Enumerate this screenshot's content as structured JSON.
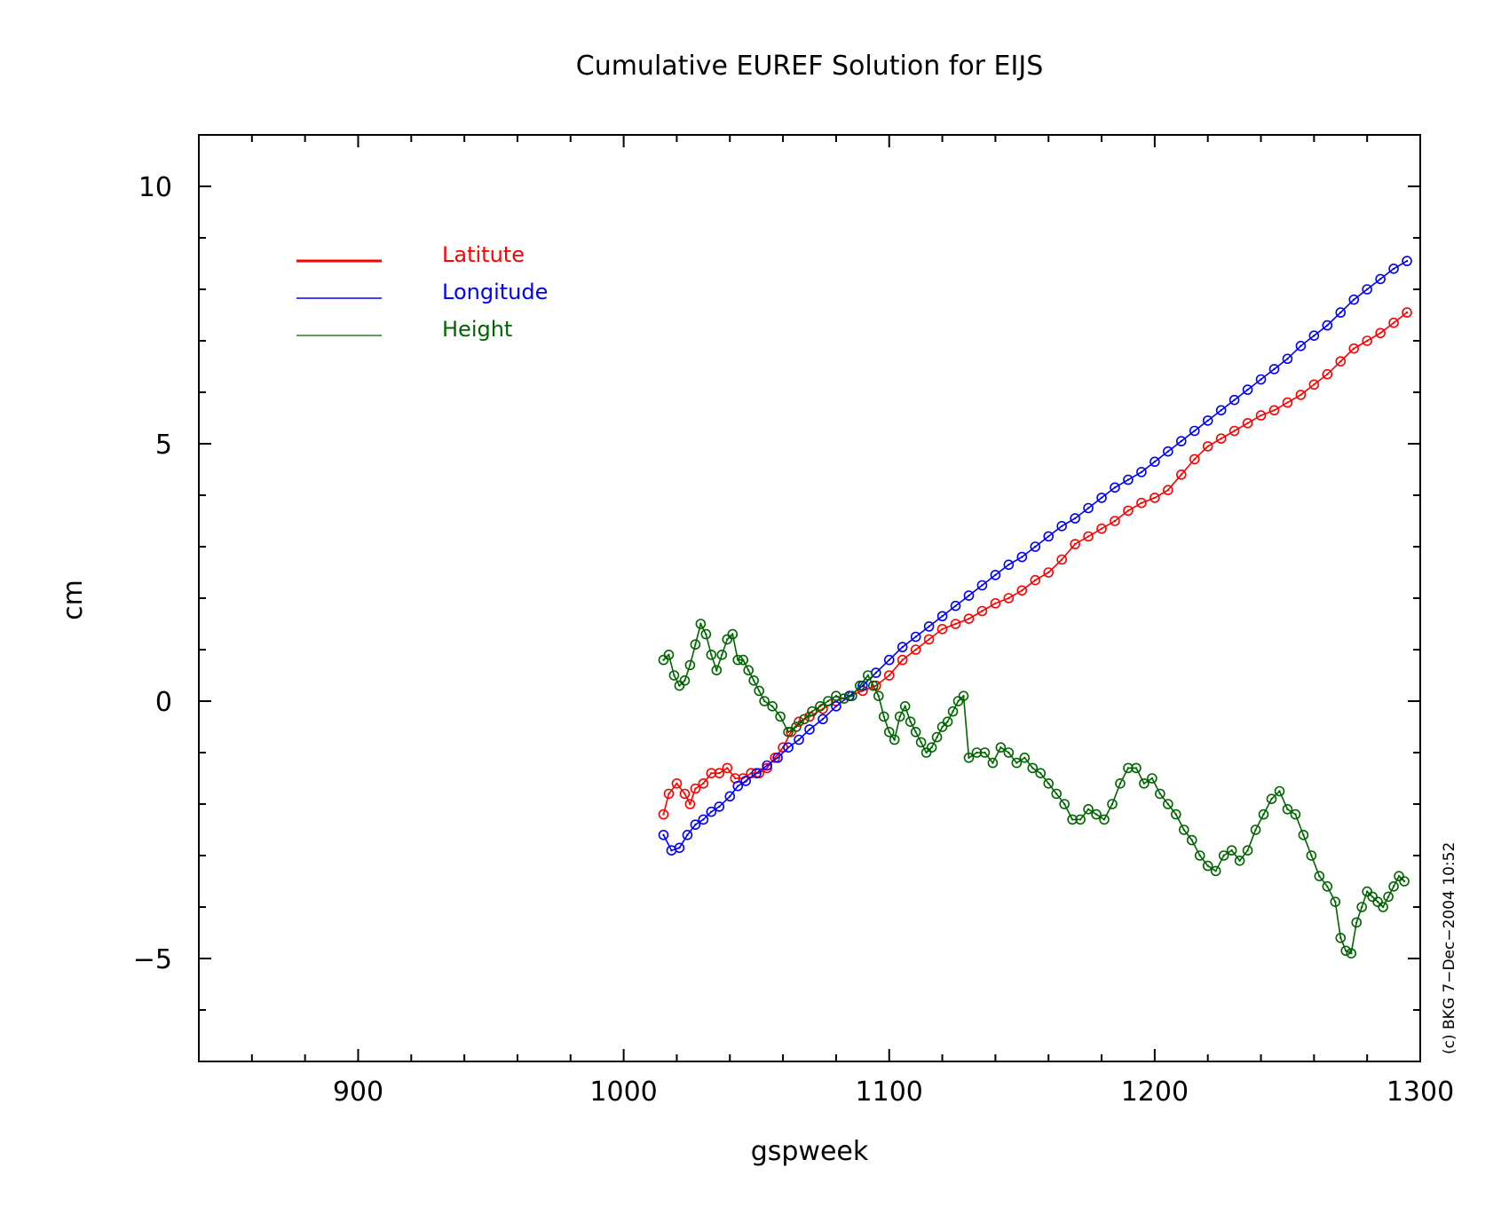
{
  "chart_data": {
    "type": "line",
    "title": "Cumulative EUREF Solution for EIJS",
    "xlabel": "gspweek",
    "ylabel": "cm",
    "xlim": [
      840,
      1300
    ],
    "ylim": [
      -7,
      11
    ],
    "x_ticks": [
      900,
      1000,
      1100,
      1200,
      1300
    ],
    "x_tick_labels": [
      "900",
      "1000",
      "1100",
      "1200",
      "1300"
    ],
    "y_ticks": [
      -5,
      0,
      5,
      10
    ],
    "y_tick_labels": [
      "−5",
      "0",
      "5",
      "10"
    ],
    "x_minor_step": 20,
    "y_minor_step": 1,
    "grid": false,
    "legend_position": "top-left",
    "credit": "(c) BKG 7−Dec−2004 10:52",
    "series": [
      {
        "name": "Latitute",
        "color": "#ff0000",
        "points": [
          [
            1015,
            -2.2
          ],
          [
            1017,
            -1.8
          ],
          [
            1020,
            -1.6
          ],
          [
            1023,
            -1.8
          ],
          [
            1025,
            -2.0
          ],
          [
            1027,
            -1.7
          ],
          [
            1030,
            -1.6
          ],
          [
            1033,
            -1.4
          ],
          [
            1036,
            -1.4
          ],
          [
            1039,
            -1.3
          ],
          [
            1042,
            -1.5
          ],
          [
            1045,
            -1.5
          ],
          [
            1048,
            -1.4
          ],
          [
            1051,
            -1.4
          ],
          [
            1054,
            -1.3
          ],
          [
            1057,
            -1.1
          ],
          [
            1060,
            -0.9
          ],
          [
            1063,
            -0.6
          ],
          [
            1066,
            -0.4
          ],
          [
            1070,
            -0.3
          ],
          [
            1075,
            -0.15
          ],
          [
            1080,
            0.0
          ],
          [
            1085,
            0.1
          ],
          [
            1090,
            0.2
          ],
          [
            1095,
            0.3
          ],
          [
            1100,
            0.5
          ],
          [
            1105,
            0.8
          ],
          [
            1110,
            1.0
          ],
          [
            1115,
            1.2
          ],
          [
            1120,
            1.4
          ],
          [
            1125,
            1.5
          ],
          [
            1130,
            1.6
          ],
          [
            1135,
            1.75
          ],
          [
            1140,
            1.9
          ],
          [
            1145,
            2.0
          ],
          [
            1150,
            2.15
          ],
          [
            1155,
            2.35
          ],
          [
            1160,
            2.5
          ],
          [
            1165,
            2.75
          ],
          [
            1170,
            3.05
          ],
          [
            1175,
            3.2
          ],
          [
            1180,
            3.35
          ],
          [
            1185,
            3.5
          ],
          [
            1190,
            3.7
          ],
          [
            1195,
            3.85
          ],
          [
            1200,
            3.95
          ],
          [
            1205,
            4.1
          ],
          [
            1210,
            4.4
          ],
          [
            1215,
            4.7
          ],
          [
            1220,
            4.95
          ],
          [
            1225,
            5.1
          ],
          [
            1230,
            5.25
          ],
          [
            1235,
            5.4
          ],
          [
            1240,
            5.55
          ],
          [
            1245,
            5.65
          ],
          [
            1250,
            5.8
          ],
          [
            1255,
            5.95
          ],
          [
            1260,
            6.15
          ],
          [
            1265,
            6.35
          ],
          [
            1270,
            6.6
          ],
          [
            1275,
            6.85
          ],
          [
            1280,
            7.0
          ],
          [
            1285,
            7.15
          ],
          [
            1290,
            7.35
          ],
          [
            1295,
            7.55
          ]
        ]
      },
      {
        "name": "Longitude",
        "color": "#0000ff",
        "points": [
          [
            1015,
            -2.6
          ],
          [
            1018,
            -2.9
          ],
          [
            1021,
            -2.85
          ],
          [
            1024,
            -2.6
          ],
          [
            1027,
            -2.4
          ],
          [
            1030,
            -2.3
          ],
          [
            1033,
            -2.15
          ],
          [
            1036,
            -2.05
          ],
          [
            1040,
            -1.85
          ],
          [
            1043,
            -1.65
          ],
          [
            1046,
            -1.55
          ],
          [
            1050,
            -1.4
          ],
          [
            1054,
            -1.25
          ],
          [
            1058,
            -1.1
          ],
          [
            1062,
            -0.9
          ],
          [
            1066,
            -0.75
          ],
          [
            1070,
            -0.55
          ],
          [
            1075,
            -0.35
          ],
          [
            1080,
            -0.1
          ],
          [
            1085,
            0.1
          ],
          [
            1090,
            0.3
          ],
          [
            1095,
            0.55
          ],
          [
            1100,
            0.8
          ],
          [
            1105,
            1.05
          ],
          [
            1110,
            1.25
          ],
          [
            1115,
            1.45
          ],
          [
            1120,
            1.65
          ],
          [
            1125,
            1.85
          ],
          [
            1130,
            2.05
          ],
          [
            1135,
            2.25
          ],
          [
            1140,
            2.45
          ],
          [
            1145,
            2.65
          ],
          [
            1150,
            2.8
          ],
          [
            1155,
            3.0
          ],
          [
            1160,
            3.2
          ],
          [
            1165,
            3.4
          ],
          [
            1170,
            3.55
          ],
          [
            1175,
            3.75
          ],
          [
            1180,
            3.95
          ],
          [
            1185,
            4.15
          ],
          [
            1190,
            4.3
          ],
          [
            1195,
            4.45
          ],
          [
            1200,
            4.65
          ],
          [
            1205,
            4.85
          ],
          [
            1210,
            5.05
          ],
          [
            1215,
            5.25
          ],
          [
            1220,
            5.45
          ],
          [
            1225,
            5.65
          ],
          [
            1230,
            5.85
          ],
          [
            1235,
            6.05
          ],
          [
            1240,
            6.25
          ],
          [
            1245,
            6.45
          ],
          [
            1250,
            6.65
          ],
          [
            1255,
            6.9
          ],
          [
            1260,
            7.1
          ],
          [
            1265,
            7.3
          ],
          [
            1270,
            7.55
          ],
          [
            1275,
            7.8
          ],
          [
            1280,
            8.0
          ],
          [
            1285,
            8.2
          ],
          [
            1290,
            8.4
          ],
          [
            1295,
            8.55
          ]
        ]
      },
      {
        "name": "Height",
        "color": "#006400",
        "points": [
          [
            1015,
            0.8
          ],
          [
            1017,
            0.9
          ],
          [
            1019,
            0.5
          ],
          [
            1021,
            0.3
          ],
          [
            1023,
            0.4
          ],
          [
            1025,
            0.7
          ],
          [
            1027,
            1.1
          ],
          [
            1029,
            1.5
          ],
          [
            1031,
            1.3
          ],
          [
            1033,
            0.9
          ],
          [
            1035,
            0.6
          ],
          [
            1037,
            0.9
          ],
          [
            1039,
            1.2
          ],
          [
            1041,
            1.3
          ],
          [
            1043,
            0.8
          ],
          [
            1045,
            0.8
          ],
          [
            1047,
            0.6
          ],
          [
            1049,
            0.4
          ],
          [
            1051,
            0.2
          ],
          [
            1053,
            0.0
          ],
          [
            1056,
            -0.1
          ],
          [
            1059,
            -0.3
          ],
          [
            1062,
            -0.6
          ],
          [
            1065,
            -0.5
          ],
          [
            1068,
            -0.35
          ],
          [
            1071,
            -0.2
          ],
          [
            1074,
            -0.1
          ],
          [
            1077,
            0.0
          ],
          [
            1080,
            0.1
          ],
          [
            1083,
            0.05
          ],
          [
            1086,
            0.1
          ],
          [
            1089,
            0.3
          ],
          [
            1092,
            0.5
          ],
          [
            1094,
            0.3
          ],
          [
            1096,
            0.1
          ],
          [
            1098,
            -0.3
          ],
          [
            1100,
            -0.6
          ],
          [
            1102,
            -0.75
          ],
          [
            1104,
            -0.3
          ],
          [
            1106,
            -0.1
          ],
          [
            1108,
            -0.4
          ],
          [
            1110,
            -0.6
          ],
          [
            1112,
            -0.8
          ],
          [
            1114,
            -1.0
          ],
          [
            1116,
            -0.9
          ],
          [
            1118,
            -0.7
          ],
          [
            1120,
            -0.5
          ],
          [
            1122,
            -0.4
          ],
          [
            1124,
            -0.2
          ],
          [
            1126,
            0.0
          ],
          [
            1128,
            0.1
          ],
          [
            1130,
            -1.1
          ],
          [
            1133,
            -1.0
          ],
          [
            1136,
            -1.0
          ],
          [
            1139,
            -1.2
          ],
          [
            1142,
            -0.9
          ],
          [
            1145,
            -1.0
          ],
          [
            1148,
            -1.2
          ],
          [
            1151,
            -1.1
          ],
          [
            1154,
            -1.3
          ],
          [
            1157,
            -1.4
          ],
          [
            1160,
            -1.6
          ],
          [
            1163,
            -1.8
          ],
          [
            1166,
            -2.0
          ],
          [
            1169,
            -2.3
          ],
          [
            1172,
            -2.3
          ],
          [
            1175,
            -2.1
          ],
          [
            1178,
            -2.2
          ],
          [
            1181,
            -2.3
          ],
          [
            1184,
            -2.0
          ],
          [
            1187,
            -1.6
          ],
          [
            1190,
            -1.3
          ],
          [
            1193,
            -1.3
          ],
          [
            1196,
            -1.6
          ],
          [
            1199,
            -1.5
          ],
          [
            1202,
            -1.8
          ],
          [
            1205,
            -2.0
          ],
          [
            1208,
            -2.2
          ],
          [
            1211,
            -2.5
          ],
          [
            1214,
            -2.7
          ],
          [
            1217,
            -3.0
          ],
          [
            1220,
            -3.2
          ],
          [
            1223,
            -3.3
          ],
          [
            1226,
            -3.0
          ],
          [
            1229,
            -2.9
          ],
          [
            1232,
            -3.1
          ],
          [
            1235,
            -2.9
          ],
          [
            1238,
            -2.5
          ],
          [
            1241,
            -2.2
          ],
          [
            1244,
            -1.9
          ],
          [
            1247,
            -1.75
          ],
          [
            1250,
            -2.1
          ],
          [
            1253,
            -2.2
          ],
          [
            1256,
            -2.6
          ],
          [
            1259,
            -3.0
          ],
          [
            1262,
            -3.4
          ],
          [
            1265,
            -3.6
          ],
          [
            1268,
            -3.9
          ],
          [
            1270,
            -4.6
          ],
          [
            1272,
            -4.85
          ],
          [
            1274,
            -4.9
          ],
          [
            1276,
            -4.3
          ],
          [
            1278,
            -4.0
          ],
          [
            1280,
            -3.7
          ],
          [
            1282,
            -3.8
          ],
          [
            1284,
            -3.9
          ],
          [
            1286,
            -4.0
          ],
          [
            1288,
            -3.8
          ],
          [
            1290,
            -3.6
          ],
          [
            1292,
            -3.4
          ],
          [
            1294,
            -3.5
          ]
        ]
      }
    ]
  }
}
